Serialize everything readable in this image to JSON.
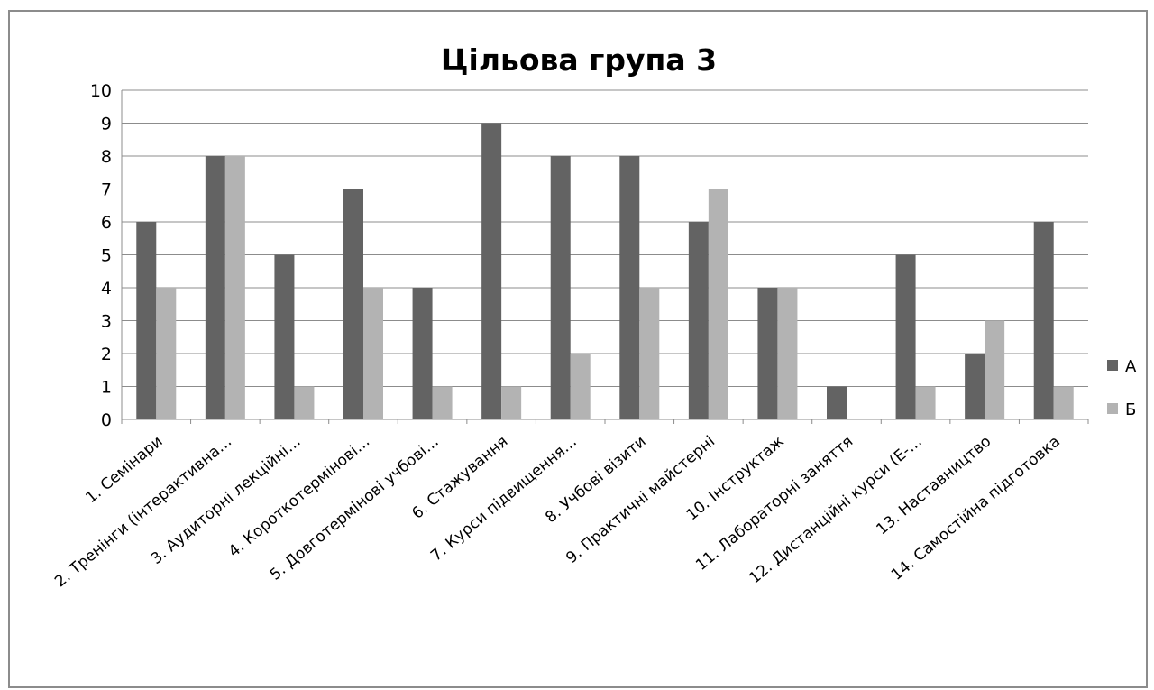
{
  "chart_data": {
    "type": "bar",
    "title": "Цільова група 3",
    "xlabel": "",
    "ylabel": "",
    "ylim": [
      0,
      10
    ],
    "yticks": [
      0,
      1,
      2,
      3,
      4,
      5,
      6,
      7,
      8,
      9,
      10
    ],
    "grid": true,
    "legend_position": "right",
    "categories": [
      "1.   Семінари",
      "2.   Тренінги (інтерактивна…",
      "3.   Аудиторні лекційні…",
      "4.   Короткотермінові…",
      "5.   Довготермінові учбові…",
      "6.   Стажування",
      "7.   Курси підвищення…",
      "8.   Учбові візити",
      "9.   Практичні майстерні",
      "10. Інструктаж",
      "11. Лабораторні заняття",
      "12. Дистанційні курси (Е-…",
      "13. Наставництво",
      "14. Самостійна підготовка"
    ],
    "series": [
      {
        "name": "А",
        "color": "#636363",
        "values": [
          6,
          8,
          5,
          7,
          4,
          9,
          8,
          8,
          6,
          4,
          1,
          5,
          2,
          6
        ]
      },
      {
        "name": "Б",
        "color": "#b3b3b3",
        "values": [
          4,
          8,
          1,
          4,
          1,
          1,
          2,
          4,
          7,
          4,
          0,
          1,
          3,
          1
        ]
      }
    ]
  }
}
